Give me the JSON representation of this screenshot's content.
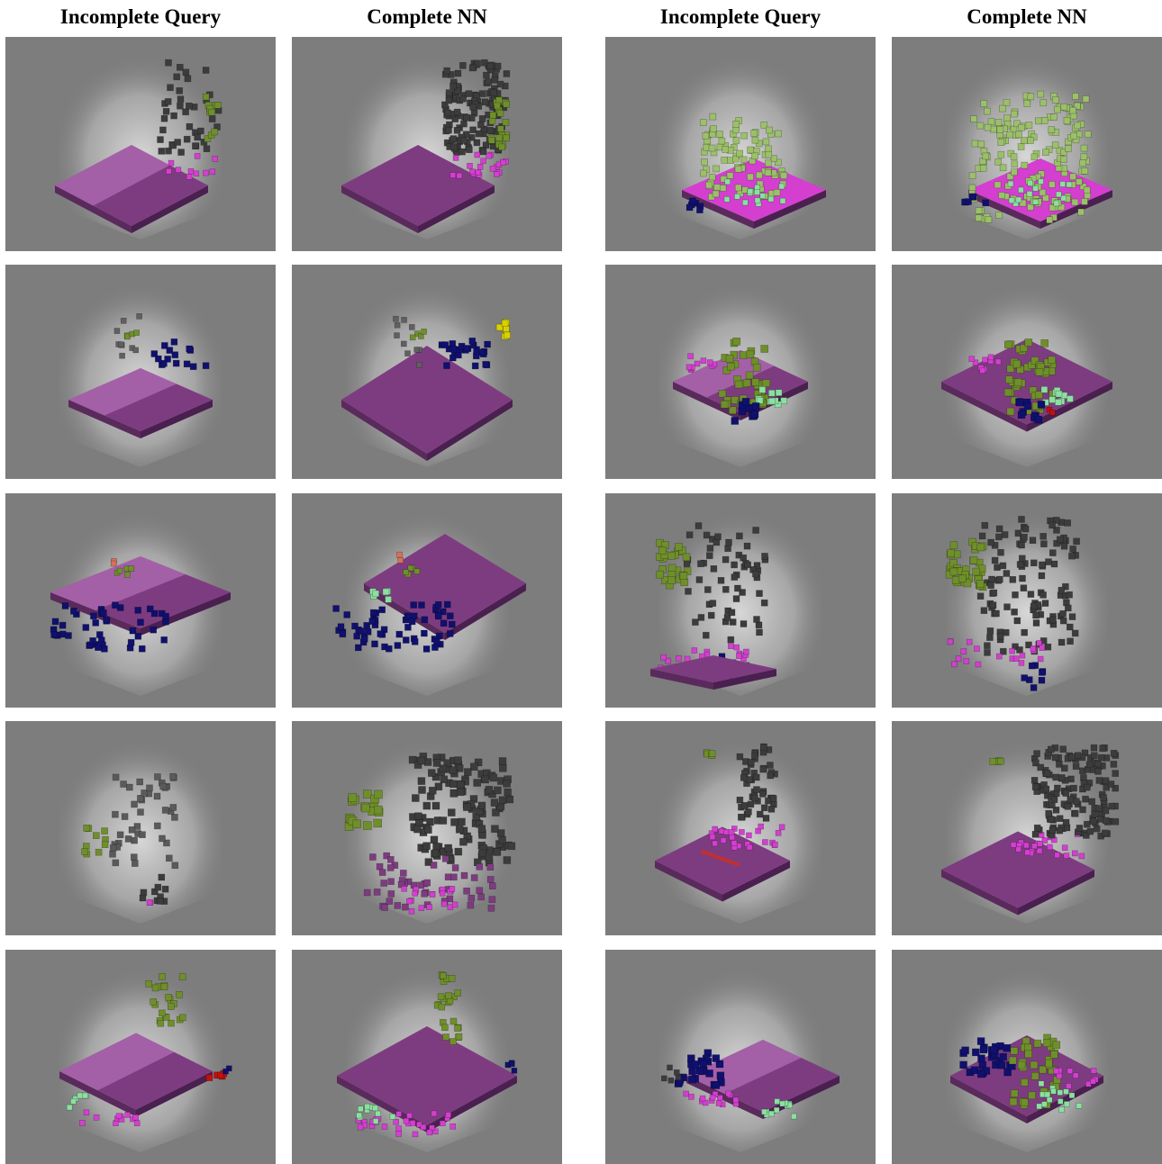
{
  "headers": [
    "Incomplete Query",
    "Complete NN",
    "Incomplete Query",
    "Complete NN"
  ],
  "colors": {
    "panel_bg": "#7d7d7d",
    "floor": "#7e3c80",
    "floor_light": "#c27dc7",
    "wall": "#3c3c3c",
    "magenta": "#d43fd0",
    "olive": "#6f8f2a",
    "light_green": "#8be0a0",
    "navy": "#10106e",
    "red": "#c01010",
    "yellow": "#d8d000"
  },
  "rows": [
    [
      {
        "type": "incomplete",
        "scene": "floor-with-wall-and-plant"
      },
      {
        "type": "complete",
        "scene": "floor-with-wall-and-plant"
      },
      {
        "type": "incomplete",
        "scene": "plant-over-floor"
      },
      {
        "type": "complete",
        "scene": "plant-over-floor"
      }
    ],
    [
      {
        "type": "incomplete",
        "scene": "floor-with-navy-object"
      },
      {
        "type": "complete",
        "scene": "floor-with-navy-object"
      },
      {
        "type": "incomplete",
        "scene": "plant-with-navy-chair"
      },
      {
        "type": "complete",
        "scene": "plant-with-navy-chair"
      }
    ],
    [
      {
        "type": "incomplete",
        "scene": "floor-with-navy-edge"
      },
      {
        "type": "complete",
        "scene": "floor-with-navy-edge"
      },
      {
        "type": "incomplete",
        "scene": "tilted-wall-and-plant"
      },
      {
        "type": "complete",
        "scene": "tilted-wall-and-plant"
      }
    ],
    [
      {
        "type": "incomplete",
        "scene": "wall-fragment"
      },
      {
        "type": "complete",
        "scene": "wall-with-plant"
      },
      {
        "type": "incomplete",
        "scene": "floor-with-wall"
      },
      {
        "type": "complete",
        "scene": "floor-with-wall"
      }
    ],
    [
      {
        "type": "incomplete",
        "scene": "floor-with-plant-and-red"
      },
      {
        "type": "complete",
        "scene": "floor-with-plant"
      },
      {
        "type": "incomplete",
        "scene": "floor-with-navy-corner"
      },
      {
        "type": "complete",
        "scene": "floor-with-plant-and-navy"
      }
    ]
  ]
}
